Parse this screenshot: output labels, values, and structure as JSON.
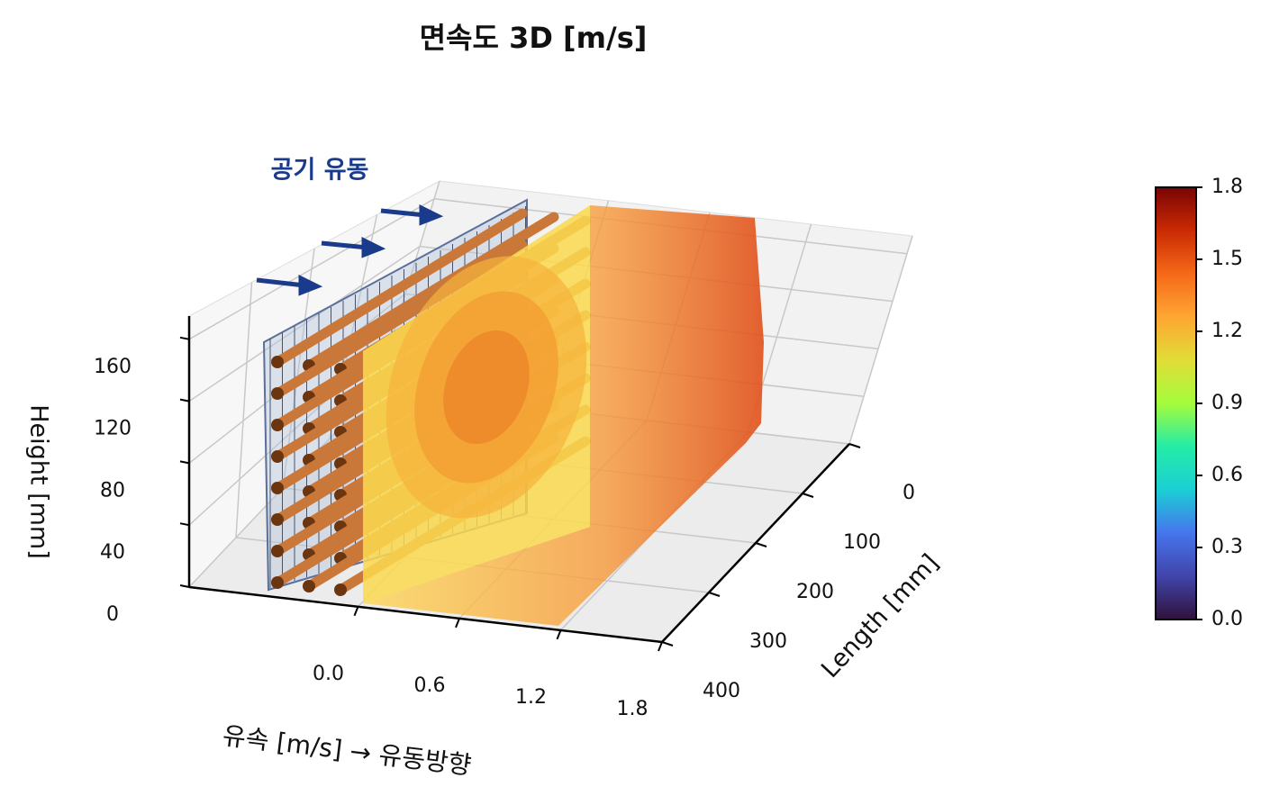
{
  "chart_data": {
    "type": "surface3d",
    "title": "면속도 3D [m/s]",
    "annotation": "공기 유동",
    "xlabel": "유속 [m/s]  →  유동방향",
    "ylabel": "Length [mm]",
    "zlabel": "Height [mm]",
    "xlim": [
      -1.0,
      1.8
    ],
    "xticks": [
      {
        "value": 0,
        "label": "0.0"
      },
      0.6,
      1.2,
      1.8
    ],
    "ylim": [
      0,
      400
    ],
    "yticks": [
      0,
      100,
      200,
      300,
      400
    ],
    "zlim": [
      0,
      175
    ],
    "zticks": [
      0,
      40,
      80,
      120,
      160
    ],
    "colorbar": {
      "lim": [
        0,
        1.8
      ],
      "ticks": [
        {
          "value": 0,
          "label": "0.0"
        },
        0.3,
        0.6,
        0.9,
        1.2,
        1.5,
        1.8
      ],
      "colormap": "turbo"
    },
    "grid": true
  }
}
